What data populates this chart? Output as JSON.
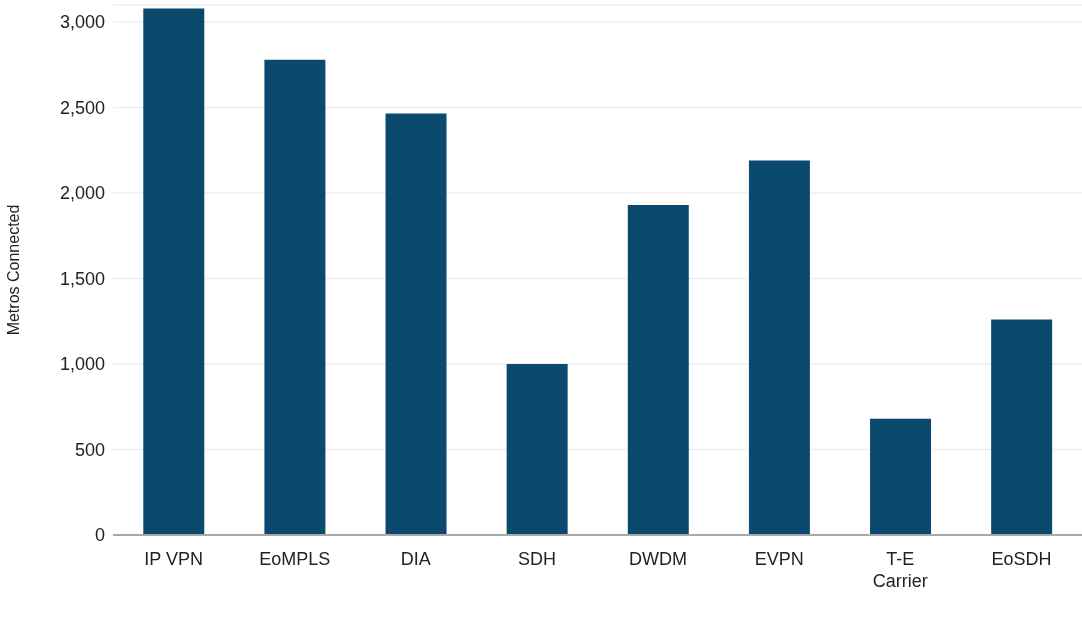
{
  "chart_data": {
    "type": "bar",
    "ylabel": "Metros Connected",
    "categories": [
      "IP VPN",
      "EoMPLS",
      "DIA",
      "SDH",
      "DWDM",
      "EVPN",
      "T-E Carrier",
      "EoSDH"
    ],
    "values": [
      3080,
      2780,
      2465,
      1000,
      1930,
      2190,
      680,
      1260
    ],
    "color": "#0b4a6e",
    "ylim": [
      0,
      3100
    ],
    "yticks": [
      {
        "value": 0,
        "label": "0"
      },
      {
        "value": 500,
        "label": "500"
      },
      {
        "value": 1000,
        "label": "1,000"
      },
      {
        "value": 1500,
        "label": "1,500"
      },
      {
        "value": 2000,
        "label": "2,000"
      },
      {
        "value": 2500,
        "label": "2,500"
      },
      {
        "value": 3000,
        "label": "3,000"
      }
    ],
    "grid": "y"
  }
}
